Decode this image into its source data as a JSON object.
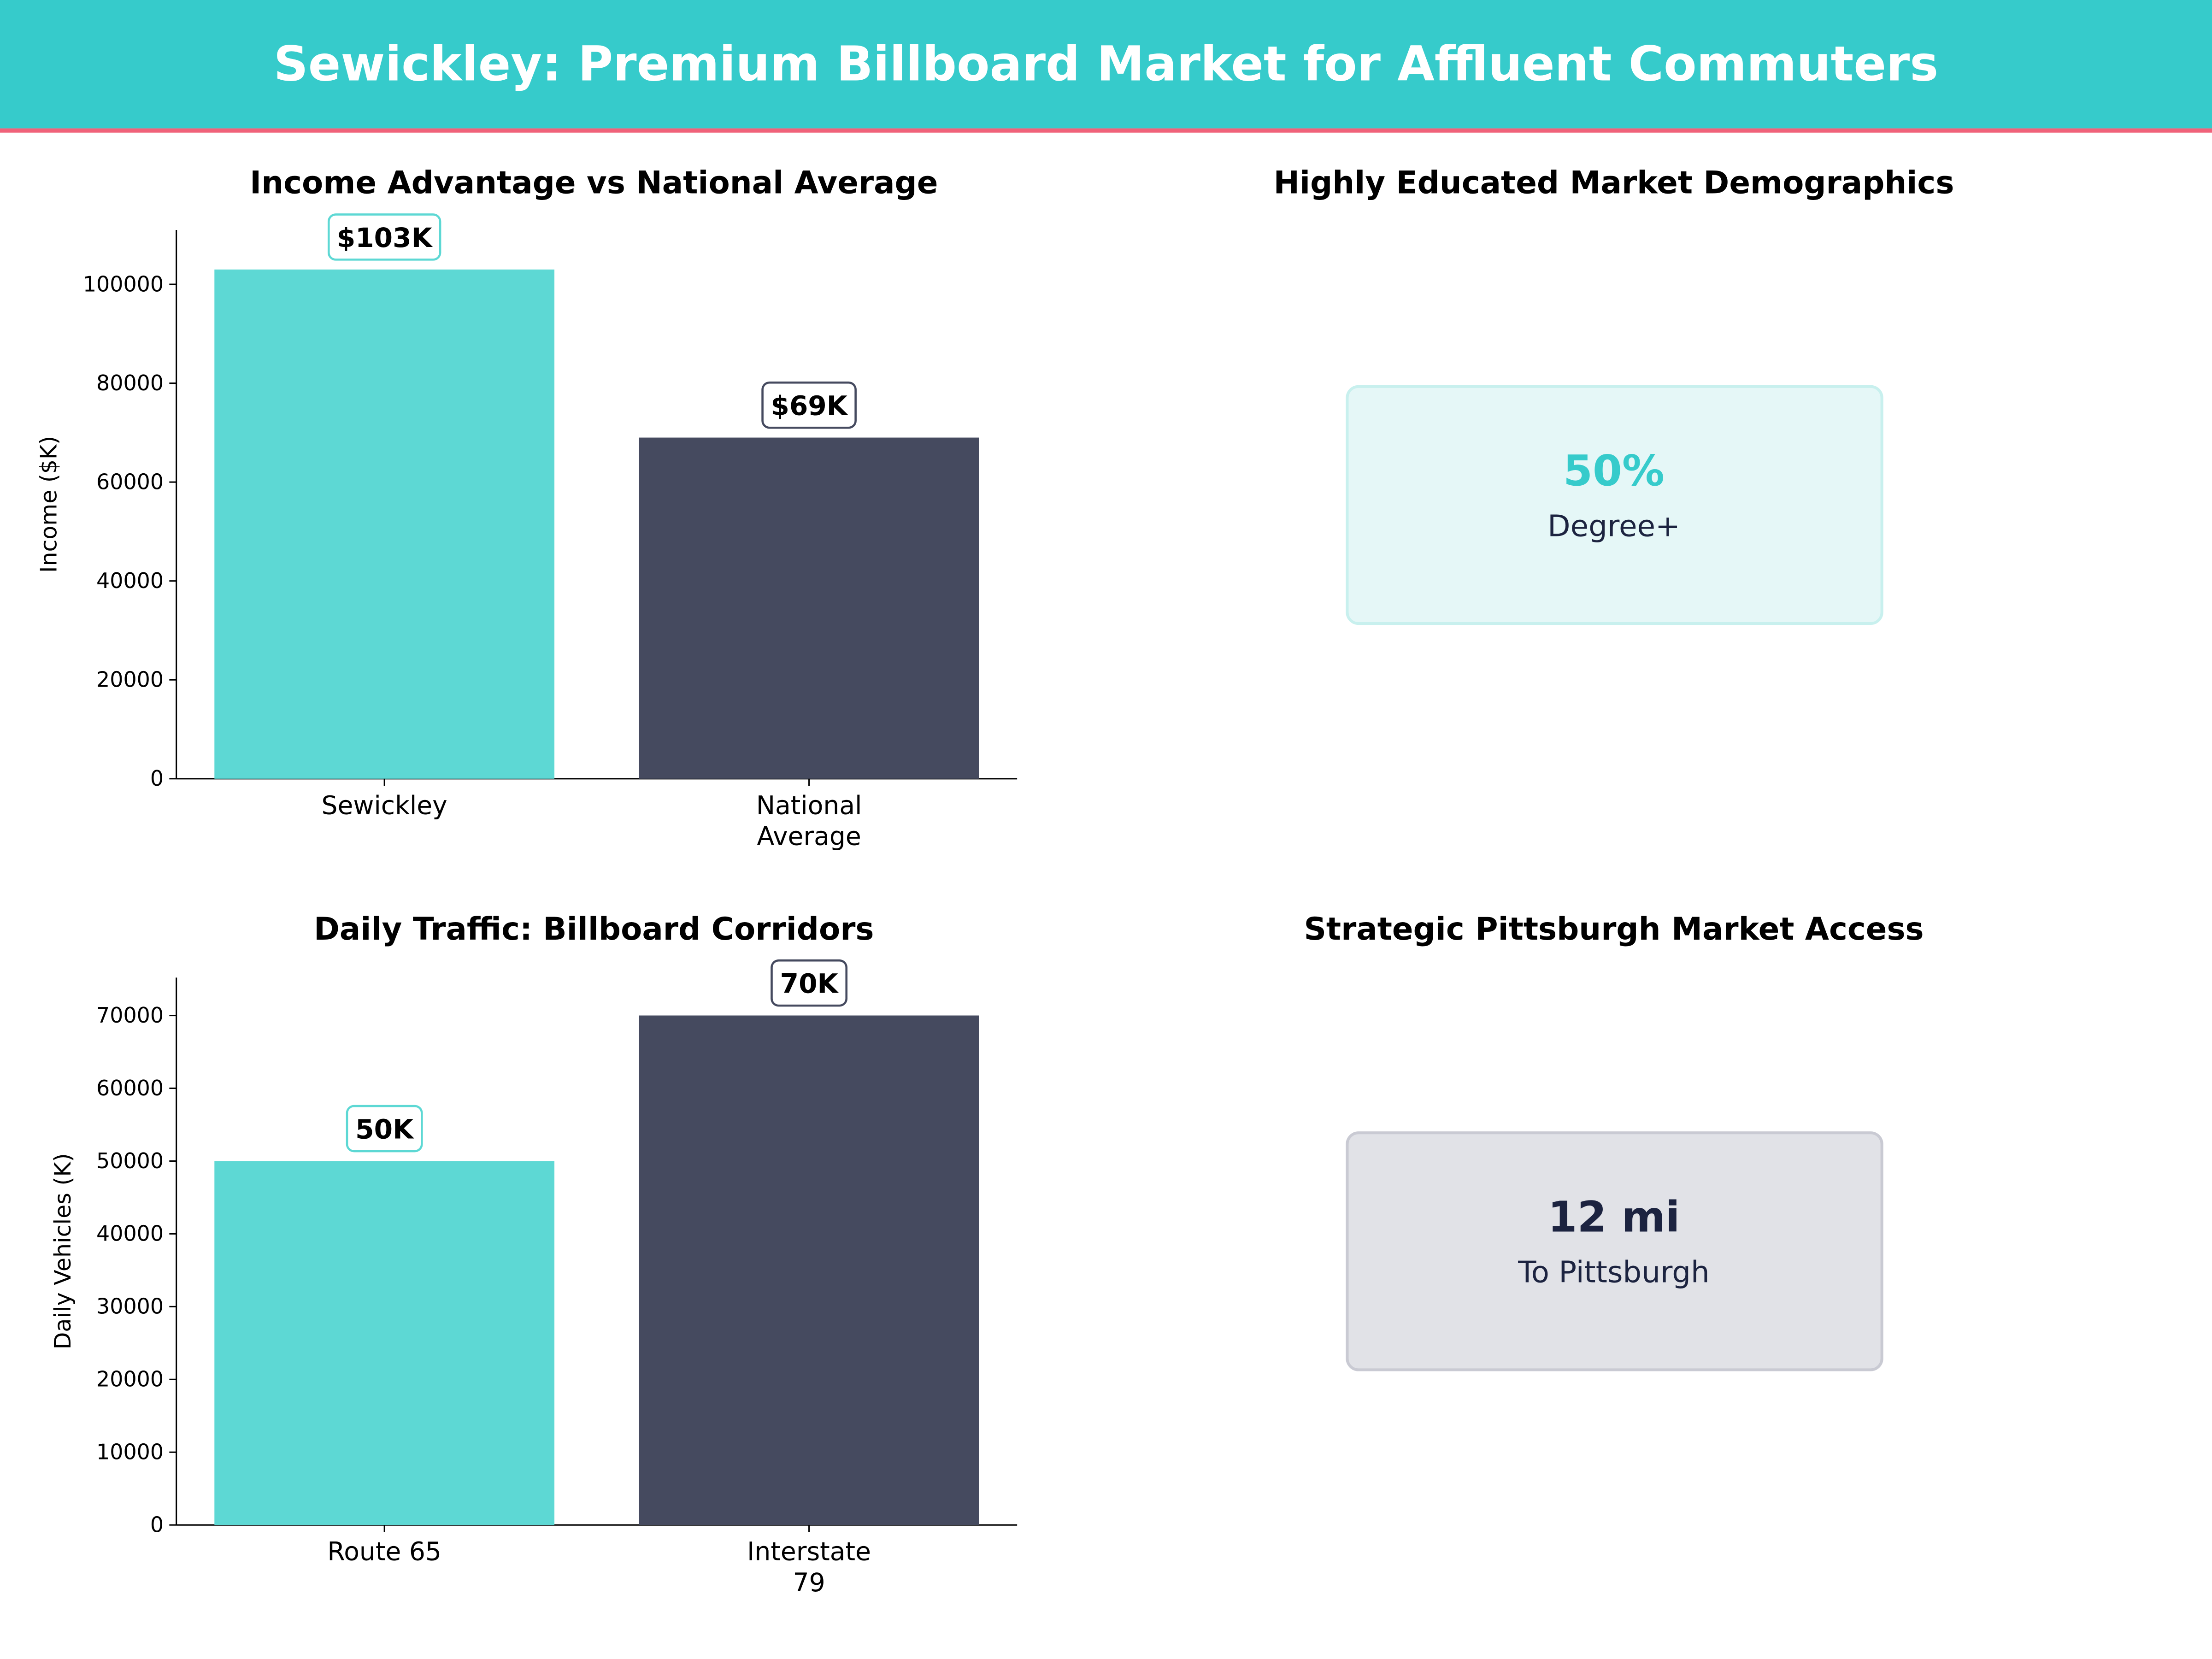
{
  "header": {
    "title": "Sewickley: Premium Billboard Market for Affluent Commuters"
  },
  "colors": {
    "header": "#36CBCB",
    "accent_line": "#F0627A",
    "teal": "#5DD8D4",
    "dark": "#454A5F"
  },
  "chart_data": [
    {
      "type": "bar",
      "title": "Income Advantage vs National Average",
      "ylabel": "Income ($K)",
      "categories": [
        "Sewickley",
        "National\nAverage"
      ],
      "values": [
        103000,
        69000
      ],
      "data_labels": [
        "$103K",
        "$69K"
      ],
      "bar_colors": [
        "#5DD8D4",
        "#454A5F"
      ],
      "yticks": [
        0,
        20000,
        40000,
        60000,
        80000,
        100000
      ],
      "ylim": [
        0,
        111000
      ],
      "grid": false
    },
    {
      "type": "bar",
      "title": "Daily Traffic: Billboard Corridors",
      "ylabel": "Daily Vehicles (K)",
      "categories": [
        "Route 65",
        "Interstate\n79"
      ],
      "values": [
        50000,
        70000
      ],
      "data_labels": [
        "50K",
        "70K"
      ],
      "bar_colors": [
        "#5DD8D4",
        "#454A5F"
      ],
      "yticks": [
        0,
        10000,
        20000,
        30000,
        40000,
        50000,
        60000,
        70000
      ],
      "ylim": [
        0,
        75200
      ],
      "grid": false
    }
  ],
  "panels": {
    "education": {
      "title": "Highly Educated Market Demographics",
      "value": "50%",
      "label": "Degree+"
    },
    "access": {
      "title": "Strategic Pittsburgh Market Access",
      "value": "12 mi",
      "label": "To Pittsburgh"
    }
  }
}
